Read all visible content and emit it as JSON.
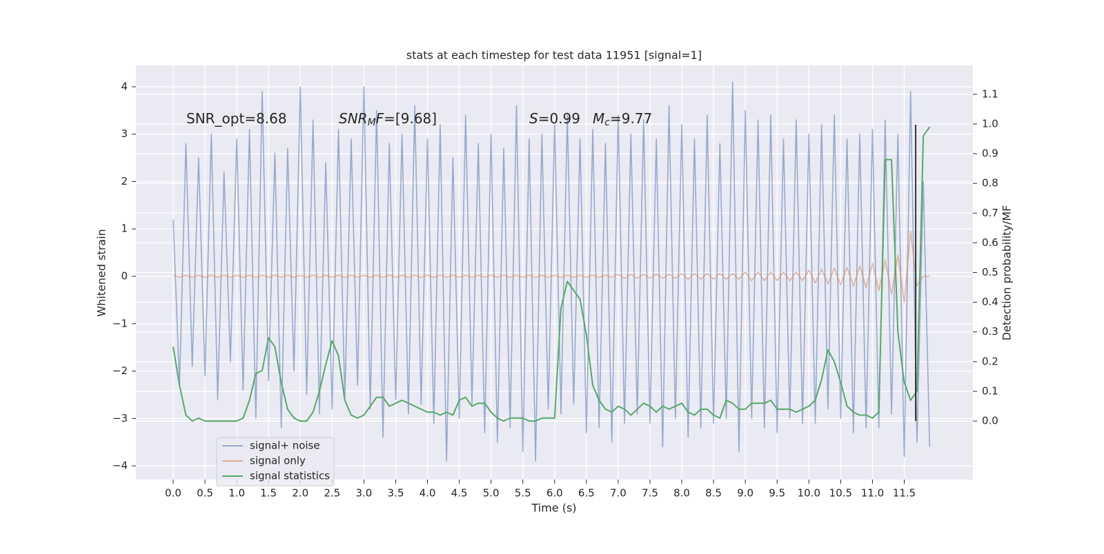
{
  "chart_data": {
    "type": "line",
    "title": "stats at each timestep for test data 11951 [signal=1]",
    "xlabel": "Time (s)",
    "ylabel": "Whitened strain",
    "y2label": "Detection probability/MF",
    "grid": true,
    "legend": "lower left",
    "xlim": [
      -0.586,
      12.58
    ],
    "ylim": [
      -4.29,
      4.45
    ],
    "y2lim": [
      -0.197,
      1.197
    ],
    "xticks": [
      {
        "value": 0,
        "label": "0.0"
      },
      {
        "value": 0.5,
        "label": "0.5"
      },
      {
        "value": 1,
        "label": "1.0"
      },
      {
        "value": 1.5,
        "label": "1.5"
      },
      {
        "value": 2,
        "label": "2.0"
      },
      {
        "value": 2.5,
        "label": "2.5"
      },
      {
        "value": 3,
        "label": "3.0"
      },
      {
        "value": 3.5,
        "label": "3.5"
      },
      {
        "value": 4,
        "label": "4.0"
      },
      {
        "value": 4.5,
        "label": "4.5"
      },
      {
        "value": 5,
        "label": "5.0"
      },
      {
        "value": 5.5,
        "label": "5.5"
      },
      {
        "value": 6,
        "label": "6.0"
      },
      {
        "value": 6.5,
        "label": "6.5"
      },
      {
        "value": 7,
        "label": "7.0"
      },
      {
        "value": 7.5,
        "label": "7.5"
      },
      {
        "value": 8,
        "label": "8.0"
      },
      {
        "value": 8.5,
        "label": "8.5"
      },
      {
        "value": 9,
        "label": "9.0"
      },
      {
        "value": 9.5,
        "label": "9.5"
      },
      {
        "value": 10,
        "label": "10.0"
      },
      {
        "value": 10.5,
        "label": "10.5"
      },
      {
        "value": 11,
        "label": "11.0"
      },
      {
        "value": 11.5,
        "label": "11.5"
      }
    ],
    "yticks": [
      {
        "value": -4,
        "label": "−4"
      },
      {
        "value": -3,
        "label": "−3"
      },
      {
        "value": -2,
        "label": "−2"
      },
      {
        "value": -1,
        "label": "−1"
      },
      0,
      1,
      2,
      3,
      4
    ],
    "y2ticks": [
      {
        "value": 0,
        "label": "0.0"
      },
      {
        "value": 0.1,
        "label": "0.1"
      },
      {
        "value": 0.2,
        "label": "0.2"
      },
      {
        "value": 0.3,
        "label": "0.3"
      },
      {
        "value": 0.4,
        "label": "0.4"
      },
      {
        "value": 0.5,
        "label": "0.5"
      },
      {
        "value": 0.6,
        "label": "0.6"
      },
      {
        "value": 0.7,
        "label": "0.7"
      },
      {
        "value": 0.8,
        "label": "0.8"
      },
      {
        "value": 0.9,
        "label": "0.9"
      },
      {
        "value": 1,
        "label": "1.0"
      },
      {
        "value": 1.1,
        "label": "1.1"
      }
    ],
    "annotations": [
      [
        {
          "text": "SNR_opt=8.68"
        }
      ],
      [
        {
          "text": "SNR",
          "italic": true
        },
        {
          "text": "M",
          "italic": true,
          "sub": true
        },
        {
          "text": "F",
          "italic": true
        },
        {
          "text": "=[9.68]"
        }
      ],
      [
        {
          "text": "S",
          "italic": true
        },
        {
          "text": "=0.99"
        }
      ],
      [
        {
          "text": "M",
          "italic": true
        },
        {
          "text": "c",
          "italic": true,
          "sub": true
        },
        {
          "text": "=9.77"
        }
      ]
    ],
    "vline": {
      "x": 11.68,
      "y": [
        -3.05,
        3.2
      ],
      "color": "#333333"
    },
    "x": [
      0,
      0.1,
      0.2,
      0.3,
      0.4,
      0.5,
      0.6,
      0.7,
      0.8,
      0.9,
      1,
      1.1,
      1.2,
      1.3,
      1.4,
      1.5,
      1.6,
      1.7,
      1.8,
      1.9,
      2,
      2.1,
      2.2,
      2.3,
      2.4,
      2.5,
      2.6,
      2.7,
      2.8,
      2.9,
      3,
      3.1,
      3.2,
      3.3,
      3.4,
      3.5,
      3.6,
      3.7,
      3.8,
      3.9,
      4,
      4.1,
      4.2,
      4.3,
      4.4,
      4.5,
      4.6,
      4.7,
      4.8,
      4.9,
      5,
      5.1,
      5.2,
      5.3,
      5.4,
      5.5,
      5.6,
      5.7,
      5.8,
      5.9,
      6,
      6.1,
      6.2,
      6.3,
      6.4,
      6.5,
      6.6,
      6.7,
      6.8,
      6.9,
      7,
      7.1,
      7.2,
      7.3,
      7.4,
      7.5,
      7.6,
      7.7,
      7.8,
      7.9,
      8,
      8.1,
      8.2,
      8.3,
      8.4,
      8.5,
      8.6,
      8.7,
      8.8,
      8.9,
      9,
      9.1,
      9.2,
      9.3,
      9.4,
      9.5,
      9.6,
      9.7,
      9.8,
      9.9,
      10,
      10.1,
      10.2,
      10.3,
      10.4,
      10.5,
      10.6,
      10.7,
      10.8,
      10.9,
      11,
      11.1,
      11.2,
      11.3,
      11.4,
      11.5,
      11.6,
      11.7,
      11.8,
      11.9
    ],
    "series": [
      {
        "name": "signal+ noise",
        "color": "#4c72b0",
        "values": [
          1.2,
          -2.3,
          2.8,
          -1.9,
          2.5,
          -2.1,
          3.0,
          -2.6,
          2.2,
          -1.8,
          2.9,
          -2.4,
          3.1,
          -3.0,
          3.9,
          -2.2,
          2.6,
          -3.2,
          2.7,
          -2.0,
          4.0,
          -2.5,
          3.3,
          -2.9,
          2.4,
          -2.8,
          3.1,
          -2.6,
          2.9,
          -2.3,
          4.0,
          -2.8,
          3.5,
          -3.4,
          2.8,
          -2.6,
          3.0,
          -2.9,
          3.6,
          -2.7,
          2.9,
          -3.1,
          3.2,
          -3.9,
          2.5,
          -3.0,
          3.4,
          -2.7,
          2.8,
          -3.3,
          3.0,
          -3.5,
          2.7,
          -3.2,
          3.6,
          -3.7,
          2.9,
          -3.9,
          3.0,
          -2.8,
          3.2,
          -2.9,
          3.4,
          -2.7,
          2.9,
          -3.3,
          3.1,
          -3.2,
          2.8,
          -3.5,
          3.4,
          -3.1,
          3.0,
          -2.9,
          3.3,
          -3.1,
          2.9,
          -3.6,
          3.6,
          -3.0,
          3.2,
          -3.4,
          2.9,
          -3.2,
          3.4,
          -3.1,
          2.8,
          -3.0,
          4.1,
          -3.7,
          3.5,
          -3.0,
          3.3,
          -3.2,
          3.4,
          -3.3,
          2.9,
          -3.0,
          3.3,
          -3.1,
          3.0,
          -3.1,
          3.2,
          -2.8,
          3.4,
          -3.0,
          2.9,
          -3.3,
          3.0,
          -3.2,
          3.1,
          -3.2,
          3.3,
          -2.9,
          3.0,
          -3.8,
          3.9,
          -3.5,
          2.0,
          -3.6
        ]
      },
      {
        "name": "signal only",
        "color": "#dd8452",
        "values": [
          0.02,
          -0.02,
          0.02,
          -0.02,
          0.02,
          -0.02,
          0.02,
          -0.02,
          0.02,
          -0.02,
          0.02,
          -0.02,
          0.02,
          -0.02,
          0.02,
          -0.02,
          0.02,
          -0.02,
          0.02,
          -0.02,
          0.02,
          -0.02,
          0.02,
          -0.02,
          0.02,
          -0.02,
          0.02,
          -0.02,
          0.02,
          -0.02,
          0.02,
          -0.02,
          0.02,
          -0.02,
          0.02,
          -0.02,
          0.02,
          -0.02,
          0.02,
          -0.02,
          0.02,
          -0.02,
          0.02,
          -0.02,
          0.02,
          -0.02,
          0.02,
          -0.02,
          0.02,
          -0.02,
          0.02,
          -0.02,
          0.02,
          -0.02,
          0.02,
          -0.02,
          0.02,
          -0.02,
          0.02,
          -0.02,
          0.02,
          -0.02,
          0.02,
          -0.02,
          0.02,
          -0.02,
          0.02,
          -0.02,
          0.02,
          -0.02,
          0.04,
          -0.04,
          0.04,
          -0.04,
          0.04,
          -0.04,
          0.04,
          -0.04,
          0.04,
          -0.04,
          0.06,
          -0.06,
          0.06,
          -0.06,
          0.06,
          -0.06,
          0.06,
          -0.06,
          0.06,
          -0.06,
          0.09,
          -0.09,
          0.09,
          -0.09,
          0.09,
          -0.09,
          0.09,
          -0.09,
          0.09,
          -0.09,
          0.13,
          -0.14,
          0.15,
          -0.16,
          0.17,
          -0.18,
          0.19,
          -0.21,
          0.22,
          -0.24,
          0.27,
          -0.3,
          0.34,
          -0.38,
          0.45,
          -0.55,
          0.95,
          -0.2,
          0.0,
          0.0
        ]
      },
      {
        "name": "signal statistics",
        "color": "#55a868",
        "axis": "y2",
        "values": [
          0.25,
          0.12,
          0.02,
          0.0,
          0.01,
          0.0,
          0.0,
          0.0,
          0.0,
          0.0,
          0.0,
          0.01,
          0.07,
          0.16,
          0.17,
          0.28,
          0.25,
          0.13,
          0.04,
          0.01,
          0.0,
          0.0,
          0.03,
          0.1,
          0.19,
          0.27,
          0.22,
          0.07,
          0.02,
          0.01,
          0.02,
          0.05,
          0.08,
          0.08,
          0.05,
          0.06,
          0.07,
          0.06,
          0.05,
          0.04,
          0.03,
          0.03,
          0.02,
          0.03,
          0.02,
          0.07,
          0.08,
          0.05,
          0.06,
          0.06,
          0.03,
          0.01,
          0.0,
          0.01,
          0.01,
          0.01,
          0.0,
          0.0,
          0.01,
          0.01,
          0.01,
          0.38,
          0.47,
          0.44,
          0.41,
          0.29,
          0.12,
          0.07,
          0.04,
          0.03,
          0.05,
          0.04,
          0.02,
          0.04,
          0.06,
          0.05,
          0.03,
          0.05,
          0.04,
          0.05,
          0.06,
          0.03,
          0.02,
          0.04,
          0.04,
          0.02,
          0.01,
          0.07,
          0.06,
          0.04,
          0.04,
          0.06,
          0.06,
          0.06,
          0.07,
          0.04,
          0.04,
          0.04,
          0.03,
          0.04,
          0.05,
          0.07,
          0.14,
          0.24,
          0.2,
          0.13,
          0.05,
          0.03,
          0.02,
          0.02,
          0.01,
          0.03,
          0.88,
          0.88,
          0.3,
          0.13,
          0.07,
          0.1,
          0.96,
          0.99
        ]
      }
    ]
  }
}
